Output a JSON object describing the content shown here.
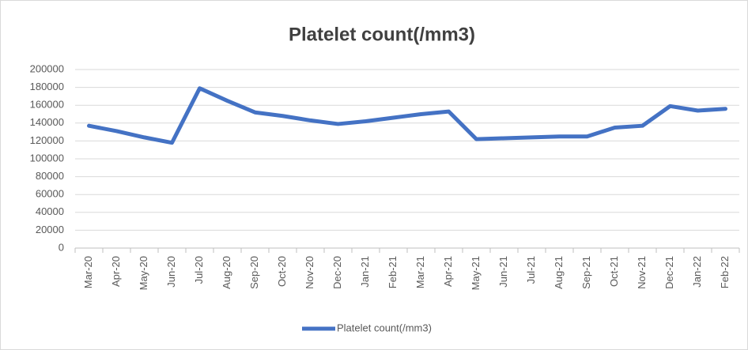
{
  "chart_data": {
    "type": "line",
    "title": "Platelet count(/mm3)",
    "categories": [
      "Mar-20",
      "Apr-20",
      "May-20",
      "Jun-20",
      "Jul-20",
      "Aug-20",
      "Sep-20",
      "Oct-20",
      "Nov-20",
      "Dec-20",
      "Jan-21",
      "Feb-21",
      "Mar-21",
      "Apr-21",
      "May-21",
      "Jun-21",
      "Jul-21",
      "Aug-21",
      "Sep-21",
      "Oct-21",
      "Nov-21",
      "Dec-21",
      "Jan-22",
      "Feb-22"
    ],
    "series": [
      {
        "name": "Platelet count(/mm3)",
        "color": "#4472c4",
        "values": [
          137000,
          131000,
          124000,
          118000,
          179000,
          165000,
          152000,
          148000,
          143000,
          139000,
          142000,
          146000,
          150000,
          153000,
          122000,
          123000,
          124000,
          125000,
          125000,
          135000,
          137000,
          159000,
          154000,
          156000
        ]
      }
    ],
    "ylim": [
      0,
      200000
    ],
    "yticks": [
      0,
      20000,
      40000,
      60000,
      80000,
      100000,
      120000,
      140000,
      160000,
      180000,
      200000
    ],
    "grid": true,
    "legend": "bottom"
  }
}
